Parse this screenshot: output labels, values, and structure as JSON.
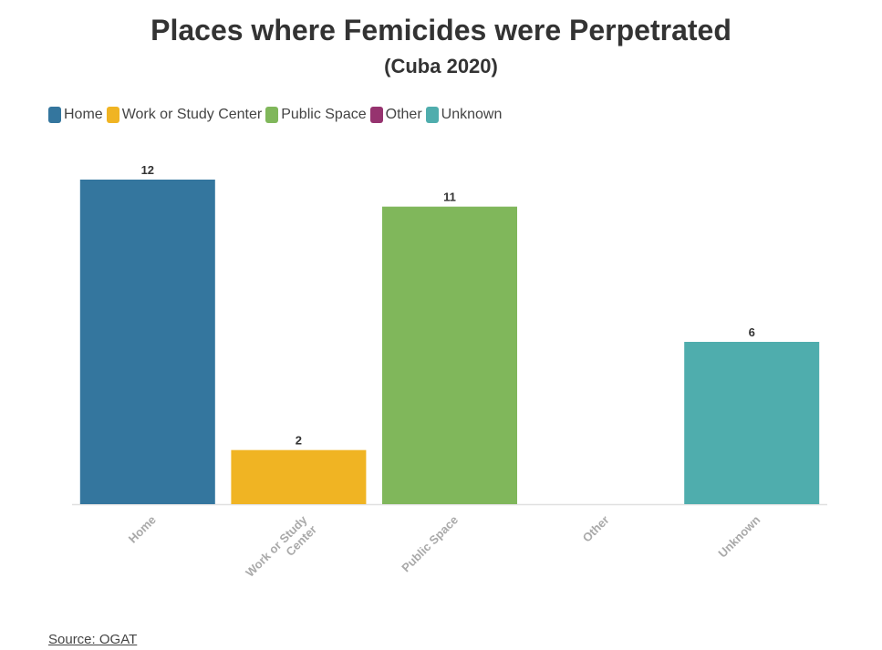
{
  "chart_data": {
    "type": "bar",
    "title": "Places where Femicides were Perpetrated",
    "subtitle": "(Cuba 2020)",
    "categories": [
      "Home",
      "Work or Study Center",
      "Public Space",
      "Other",
      "Unknown"
    ],
    "tick_labels": [
      [
        "Home"
      ],
      [
        "Work or Study",
        "Center"
      ],
      [
        "Public Space"
      ],
      [
        "Other"
      ],
      [
        "Unknown"
      ]
    ],
    "values": [
      12,
      2,
      11,
      0,
      6
    ],
    "data_labels": [
      "12",
      "2",
      "11",
      "",
      "6"
    ],
    "colors": [
      "#34769e",
      "#f0b423",
      "#80b75b",
      "#96336f",
      "#4fadad"
    ],
    "legend": [
      "Home",
      "Work or Study Center",
      "Public Space",
      "Other",
      "Unknown"
    ],
    "legend_position": "top-left",
    "ylim": [
      0,
      12
    ],
    "grid": false
  },
  "source": "Source: OGAT"
}
